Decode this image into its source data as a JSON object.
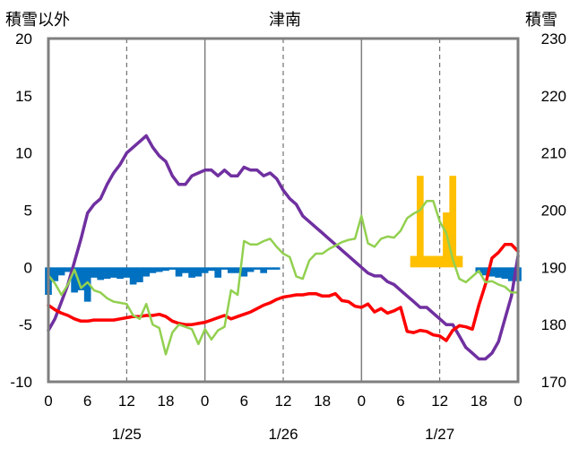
{
  "chart_data": {
    "type": "line",
    "title": "津南",
    "left_axis": {
      "label": "積雪以外",
      "ylim": [
        -10,
        20
      ],
      "ticks": [
        20,
        15,
        10,
        5,
        0,
        -5,
        -10
      ]
    },
    "right_axis": {
      "label": "積雪",
      "ylim": [
        170,
        230
      ],
      "ticks": [
        230,
        220,
        210,
        200,
        190,
        180,
        170
      ]
    },
    "x": {
      "hours": [
        0,
        72
      ],
      "tick_hours": [
        0,
        6,
        12,
        18,
        24,
        30,
        36,
        42,
        48,
        54,
        60,
        66,
        72
      ],
      "tick_labels": [
        "0",
        "6",
        "12",
        "18",
        "0",
        "6",
        "12",
        "18",
        "0",
        "6",
        "12",
        "18",
        "0"
      ],
      "date_labels": [
        {
          "text": "1/25",
          "hour": 12
        },
        {
          "text": "1/26",
          "hour": 36
        },
        {
          "text": "1/27",
          "hour": 60
        }
      ],
      "day_lines": [
        24,
        48
      ],
      "dashed_lines": [
        12,
        36,
        60
      ]
    },
    "grid": "dashed vertical at noon, solid vertical at midnight",
    "series": [
      {
        "color": "#7030a0",
        "axis": "right",
        "x": [
          0,
          1,
          2,
          3,
          4,
          5,
          6,
          7,
          8,
          9,
          10,
          11,
          12,
          13,
          14,
          15,
          16,
          17,
          18,
          19,
          20,
          21,
          22,
          23,
          24,
          25,
          26,
          27,
          28,
          29,
          30,
          31,
          32,
          33,
          34,
          35,
          36,
          37,
          38,
          39,
          40,
          41,
          42,
          43,
          44,
          45,
          46,
          47,
          48,
          49,
          50,
          51,
          52,
          53,
          54,
          55,
          56,
          57,
          58,
          59,
          60,
          61,
          62,
          63,
          64,
          65,
          66,
          67,
          68,
          69,
          70,
          71,
          72
        ],
        "values": [
          179,
          181,
          184,
          187,
          191,
          195,
          199.5,
          201,
          202,
          204.5,
          206.5,
          208,
          210,
          211,
          212,
          213,
          211,
          209.5,
          208.5,
          206,
          204.5,
          204.5,
          206,
          206.5,
          207,
          207,
          206,
          207,
          206,
          206,
          207.5,
          207,
          207,
          206,
          206.5,
          205.5,
          203.5,
          202,
          201,
          199,
          198,
          197,
          196,
          195,
          194,
          193,
          192,
          191,
          190,
          189,
          188.5,
          188.5,
          187.5,
          187,
          186,
          185,
          184,
          183,
          183,
          182,
          181,
          180,
          180,
          178,
          176,
          175,
          174,
          174,
          175,
          177,
          181,
          185,
          192
        ]
      },
      {
        "color": "#ff0000",
        "axis": "left",
        "x": [
          0,
          1,
          2,
          3,
          4,
          5,
          6,
          7,
          8,
          9,
          10,
          11,
          12,
          13,
          14,
          15,
          16,
          17,
          18,
          19,
          20,
          21,
          22,
          23,
          24,
          25,
          26,
          27,
          28,
          29,
          30,
          31,
          32,
          33,
          34,
          35,
          36,
          37,
          38,
          39,
          40,
          41,
          42,
          43,
          44,
          45,
          46,
          47,
          48,
          49,
          50,
          51,
          52,
          53,
          54,
          55,
          56,
          57,
          58,
          59,
          60,
          61,
          62,
          63,
          64,
          65,
          66,
          67,
          68,
          69,
          70,
          71,
          72
        ],
        "values": [
          -3.3,
          -3.7,
          -4.0,
          -4.2,
          -4.5,
          -4.7,
          -4.7,
          -4.6,
          -4.6,
          -4.6,
          -4.6,
          -4.5,
          -4.4,
          -4.3,
          -4.3,
          -4.2,
          -4.2,
          -4.1,
          -4.3,
          -4.7,
          -4.9,
          -5.0,
          -5.0,
          -4.9,
          -4.8,
          -4.6,
          -4.4,
          -4.2,
          -4.5,
          -4.3,
          -4.1,
          -3.9,
          -3.6,
          -3.3,
          -3.1,
          -2.8,
          -2.6,
          -2.5,
          -2.4,
          -2.4,
          -2.3,
          -2.3,
          -2.5,
          -2.5,
          -2.3,
          -2.9,
          -3.0,
          -3.4,
          -3.5,
          -3.2,
          -3.9,
          -3.6,
          -4.0,
          -3.8,
          -3.5,
          -5.6,
          -5.7,
          -5.5,
          -5.6,
          -5.9,
          -6.0,
          -6.4,
          -5.5,
          -5.1,
          -5.2,
          -5.4,
          -3.3,
          -1.5,
          0.8,
          1.3,
          2.0,
          2.0,
          1.4
        ]
      },
      {
        "color": "#92d050",
        "axis": "left",
        "x": [
          0,
          1,
          2,
          3,
          4,
          5,
          6,
          7,
          8,
          9,
          10,
          11,
          12,
          13,
          14,
          15,
          16,
          17,
          18,
          19,
          20,
          21,
          22,
          23,
          24,
          25,
          26,
          27,
          28,
          29,
          30,
          31,
          32,
          33,
          34,
          35,
          36,
          37,
          38,
          39,
          40,
          41,
          42,
          43,
          44,
          45,
          46,
          47,
          48,
          49,
          50,
          51,
          52,
          53,
          54,
          55,
          56,
          57,
          58,
          59,
          60,
          61,
          62,
          63,
          64,
          65,
          66,
          67,
          68,
          69,
          70,
          71,
          72
        ],
        "values": [
          -0.7,
          -1.4,
          -2.4,
          -1.5,
          -0.2,
          -1.8,
          -1.3,
          -2.0,
          -2.2,
          -2.7,
          -3.0,
          -3.1,
          -3.2,
          -4.2,
          -4.5,
          -3.2,
          -5.0,
          -5.3,
          -7.6,
          -5.7,
          -5.0,
          -5.2,
          -5.4,
          -6.7,
          -5.4,
          -6.3,
          -5.5,
          -5.2,
          -2.0,
          -2.4,
          2.3,
          2.0,
          2.0,
          2.3,
          2.5,
          1.8,
          1.2,
          0.9,
          -0.8,
          -1.0,
          0.6,
          1.2,
          1.2,
          1.6,
          1.9,
          2.2,
          2.4,
          2.5,
          4.5,
          2.1,
          1.8,
          2.5,
          2.7,
          2.6,
          3.2,
          4.3,
          4.7,
          5.0,
          5.8,
          5.8,
          4.0,
          3.0,
          0.7,
          -1.0,
          -1.3,
          -0.8,
          -0.3,
          -1.3,
          -1.2,
          -1.5,
          -1.7,
          -2.2,
          -2.2
        ]
      }
    ],
    "bars_blue": {
      "color": "#0070c0",
      "axis": "left",
      "x": [
        0,
        1,
        2,
        3,
        4,
        5,
        6,
        7,
        8,
        9,
        10,
        11,
        12,
        13,
        14,
        15,
        16,
        17,
        18,
        19,
        20,
        21,
        22,
        23,
        24,
        25,
        26,
        27,
        28,
        29,
        30,
        31,
        32,
        33,
        34,
        35,
        36,
        37,
        38,
        39,
        40,
        41,
        42,
        43,
        44,
        45,
        46,
        47,
        48,
        49,
        50,
        51,
        52,
        53,
        54,
        55,
        56,
        57,
        58,
        59,
        60,
        61,
        62,
        63,
        64,
        65,
        66,
        67,
        68,
        69,
        70,
        71,
        72
      ],
      "values": [
        -2.4,
        -1.2,
        -0.7,
        -0.4,
        -2.2,
        -2.0,
        -3.0,
        -0.9,
        -1.1,
        -1.0,
        -0.9,
        -1.0,
        -0.9,
        -1.5,
        -1.3,
        -0.8,
        -0.5,
        -0.4,
        -0.3,
        -0.2,
        -0.8,
        -0.5,
        -0.9,
        -0.8,
        -0.5,
        -0.3,
        -0.9,
        -0.2,
        -0.5,
        -0.5,
        -0.8,
        -0.4,
        -0.2,
        -0.5,
        -0.2,
        -0.2,
        0,
        0,
        0,
        0,
        0,
        0,
        0,
        0,
        0,
        0,
        0,
        0,
        0,
        0,
        0,
        0,
        0,
        0,
        0,
        0,
        0,
        0,
        0,
        0,
        0,
        0,
        0,
        0,
        0,
        0,
        -0.5,
        -0.7,
        -0.8,
        -0.9,
        -1.0,
        -1.2,
        -1.2
      ]
    },
    "bars_orange": {
      "color": "#ffc000",
      "axis": "left",
      "x": [
        56,
        57,
        58,
        59,
        60,
        61,
        62,
        63,
        64,
        65,
        66,
        67,
        68,
        69,
        70,
        71
      ],
      "values": [
        1.0,
        8.0,
        1.0,
        1.0,
        1.0,
        4.8,
        8.0,
        1.0,
        0,
        0,
        0,
        0,
        0,
        0,
        0,
        0
      ]
    }
  }
}
